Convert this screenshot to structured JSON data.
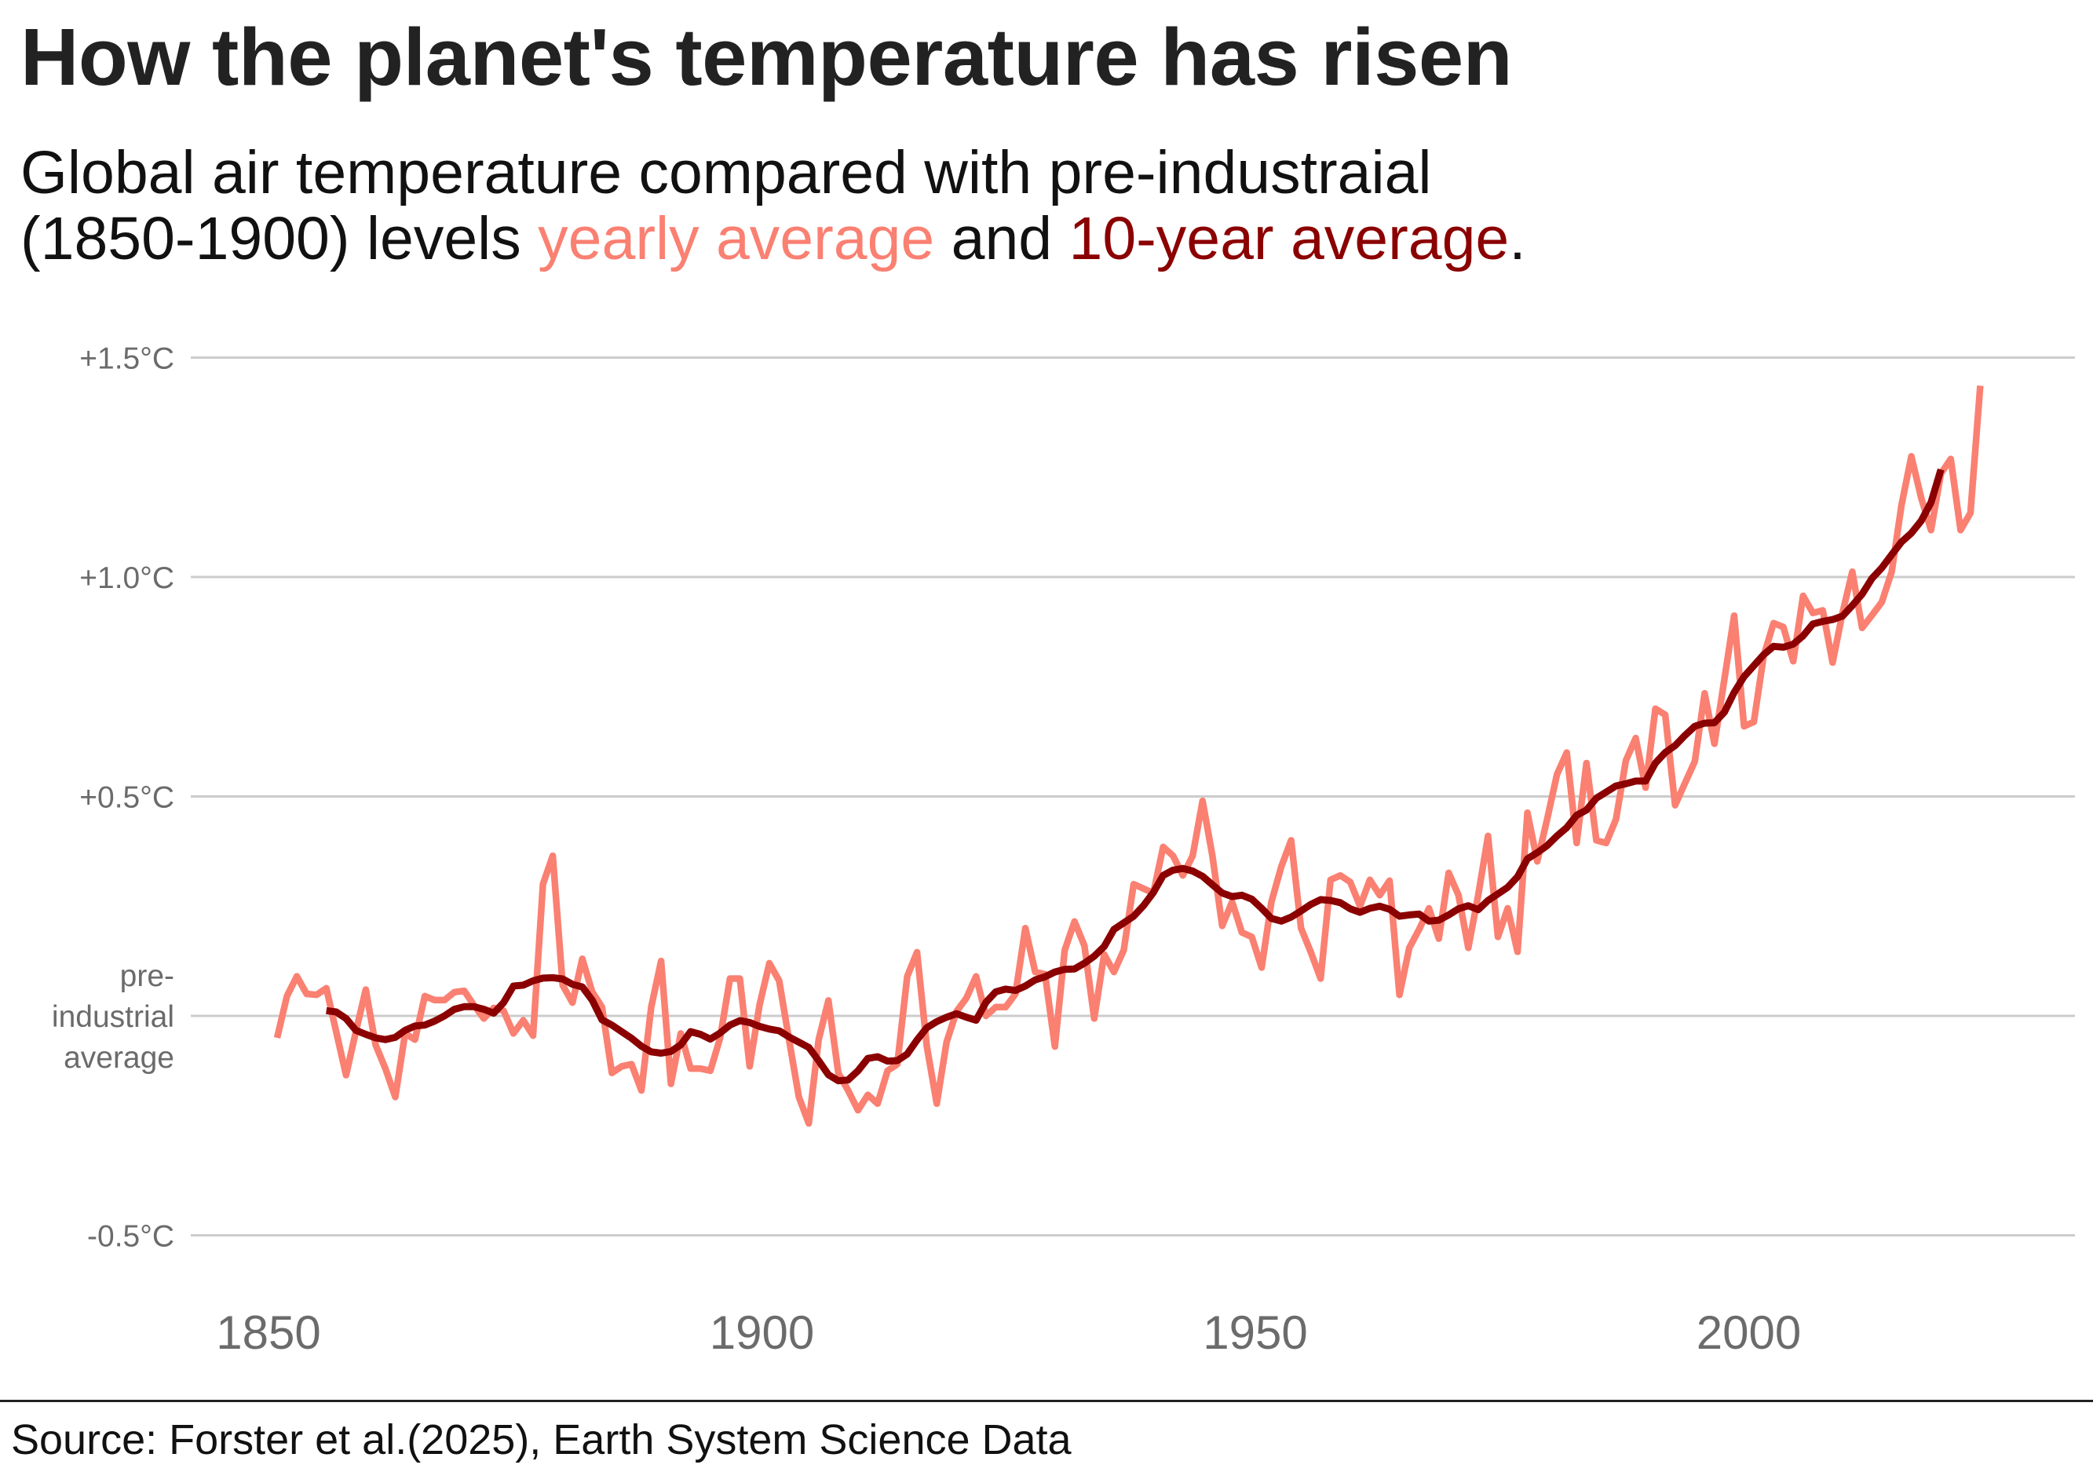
{
  "header": {
    "title": "How the planet's temperature has risen",
    "subtitle_line1": "Global air temperature compared with pre-industraial",
    "subtitle_line2_prefix": "(1850-1900) levels ",
    "subtitle_yearly": "yearly average",
    "subtitle_and": " and ",
    "subtitle_decade": "10-year average",
    "subtitle_end": "."
  },
  "footer": {
    "source": "Source: Forster et al.(2025), Earth System Science Data"
  },
  "chart_data": {
    "type": "line",
    "title": "How the planet's temperature has risen",
    "subtitle": "Global air temperature compared with pre-industraial (1850-1900) levels yearly average and 10-year average.",
    "xlabel": "",
    "ylabel": "",
    "xlim": [
      1850,
      2023
    ],
    "ylim": [
      -0.5,
      1.5
    ],
    "grid": true,
    "legend": "in-subtitle",
    "x_ticks": [
      1850,
      1900,
      1950,
      2000
    ],
    "x_tick_labels": [
      "1850",
      "1900",
      "1950",
      "2000"
    ],
    "y_ticks": [
      {
        "value": 1.5,
        "label": "+1.5°C"
      },
      {
        "value": 1.0,
        "label": "+1.0°C"
      },
      {
        "value": 0.5,
        "label": "+0.5°C"
      },
      {
        "value": 0.0,
        "label": "pre-\nindustrial\naverage"
      },
      {
        "value": -0.5,
        "label": "-0.5°C"
      }
    ],
    "colors": {
      "yearly": "#fa8072",
      "decade": "#8b0000",
      "grid": "#cccccc",
      "axis_text": "#6b6b6b"
    },
    "series": [
      {
        "name": "yearly average",
        "start_year": 1850,
        "values": [
          -0.05,
          0.045,
          0.09,
          0.05,
          0.048,
          0.063,
          -0.036,
          -0.135,
          -0.036,
          0.06,
          -0.066,
          -0.12,
          -0.185,
          -0.04,
          -0.054,
          0.045,
          0.036,
          0.036,
          0.054,
          0.057,
          0.024,
          -0.006,
          0.018,
          0.012,
          -0.04,
          -0.01,
          -0.045,
          0.3,
          0.365,
          0.07,
          0.03,
          0.13,
          0.055,
          0.02,
          -0.13,
          -0.115,
          -0.11,
          -0.17,
          0.02,
          0.125,
          -0.155,
          -0.04,
          -0.12,
          -0.12,
          -0.125,
          -0.05,
          0.085,
          0.085,
          -0.115,
          0.025,
          0.12,
          0.08,
          -0.055,
          -0.185,
          -0.245,
          -0.055,
          0.035,
          -0.13,
          -0.17,
          -0.215,
          -0.18,
          -0.2,
          -0.125,
          -0.11,
          0.09,
          0.145,
          -0.07,
          -0.2,
          -0.06,
          0.01,
          0.04,
          0.09,
          0.0,
          0.02,
          0.02,
          0.05,
          0.2,
          0.1,
          0.095,
          -0.07,
          0.15,
          0.215,
          0.16,
          -0.006,
          0.14,
          0.1,
          0.15,
          0.3,
          0.29,
          0.28,
          0.385,
          0.365,
          0.32,
          0.365,
          0.49,
          0.365,
          0.205,
          0.26,
          0.19,
          0.18,
          0.11,
          0.26,
          0.34,
          0.4,
          0.2,
          0.145,
          0.085,
          0.31,
          0.32,
          0.305,
          0.25,
          0.31,
          0.275,
          0.308,
          0.048,
          0.155,
          0.197,
          0.245,
          0.176,
          0.326,
          0.275,
          0.155,
          0.275,
          0.41,
          0.18,
          0.245,
          0.146,
          0.463,
          0.352,
          0.448,
          0.55,
          0.6,
          0.394,
          0.576,
          0.4,
          0.394,
          0.448,
          0.582,
          0.633,
          0.52,
          0.7,
          0.686,
          0.48,
          0.53,
          0.58,
          0.735,
          0.62,
          0.766,
          0.912,
          0.66,
          0.67,
          0.82,
          0.895,
          0.886,
          0.808,
          0.957,
          0.918,
          0.924,
          0.805,
          0.918,
          1.012,
          0.884,
          0.913,
          0.943,
          1.012,
          1.164,
          1.275,
          1.18,
          1.107,
          1.236,
          1.269,
          1.107,
          1.146,
          1.436
        ]
      },
      {
        "name": "10-year average",
        "start_year": 1855,
        "values": [
          0.012,
          0.009,
          -0.006,
          -0.033,
          -0.042,
          -0.05,
          -0.054,
          -0.049,
          -0.033,
          -0.023,
          -0.021,
          -0.012,
          0.0,
          0.015,
          0.021,
          0.021,
          0.015,
          0.006,
          0.03,
          0.068,
          0.07,
          0.08,
          0.086,
          0.087,
          0.084,
          0.072,
          0.066,
          0.036,
          -0.009,
          -0.021,
          -0.036,
          -0.051,
          -0.069,
          -0.082,
          -0.085,
          -0.081,
          -0.066,
          -0.036,
          -0.042,
          -0.053,
          -0.039,
          -0.021,
          -0.011,
          -0.015,
          -0.024,
          -0.03,
          -0.034,
          -0.048,
          -0.06,
          -0.072,
          -0.102,
          -0.134,
          -0.148,
          -0.146,
          -0.125,
          -0.097,
          -0.093,
          -0.103,
          -0.102,
          -0.087,
          -0.055,
          -0.027,
          -0.013,
          -0.003,
          0.005,
          -0.003,
          -0.01,
          0.031,
          0.055,
          0.061,
          0.058,
          0.068,
          0.082,
          0.089,
          0.1,
          0.106,
          0.107,
          0.12,
          0.136,
          0.158,
          0.197,
          0.212,
          0.227,
          0.251,
          0.281,
          0.32,
          0.332,
          0.336,
          0.33,
          0.318,
          0.299,
          0.28,
          0.272,
          0.275,
          0.266,
          0.245,
          0.222,
          0.216,
          0.225,
          0.239,
          0.254,
          0.265,
          0.263,
          0.258,
          0.244,
          0.236,
          0.245,
          0.25,
          0.243,
          0.227,
          0.23,
          0.232,
          0.216,
          0.218,
          0.23,
          0.244,
          0.251,
          0.242,
          0.263,
          0.278,
          0.293,
          0.317,
          0.358,
          0.372,
          0.388,
          0.41,
          0.429,
          0.457,
          0.469,
          0.496,
          0.51,
          0.524,
          0.529,
          0.535,
          0.535,
          0.576,
          0.6,
          0.616,
          0.639,
          0.66,
          0.667,
          0.668,
          0.692,
          0.737,
          0.773,
          0.798,
          0.823,
          0.842,
          0.84,
          0.847,
          0.866,
          0.893,
          0.899,
          0.903,
          0.911,
          0.935,
          0.961,
          0.997,
          1.021,
          1.051,
          1.08,
          1.1,
          1.128,
          1.17,
          1.245
        ]
      }
    ]
  }
}
